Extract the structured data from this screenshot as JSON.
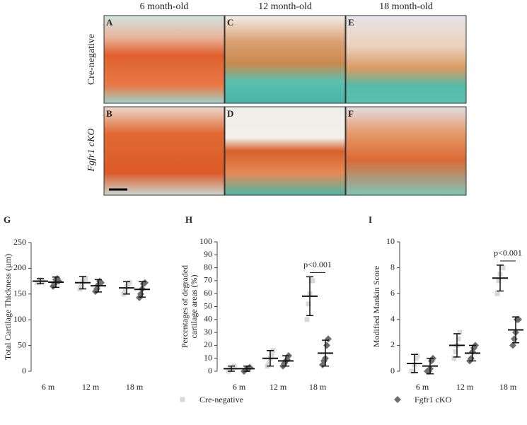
{
  "figure": {
    "columns": [
      "6 month-old",
      "12 month-old",
      "18 month-old"
    ],
    "rows": [
      "Cre-negative",
      "Fgfr1 cKO"
    ],
    "panels": [
      "A",
      "C",
      "E",
      "B",
      "D",
      "F"
    ]
  },
  "chart_data": [
    {
      "type": "dotplot",
      "panel": "G",
      "ylabel": [
        "Total Cartilage Thickness (µm)"
      ],
      "categories": [
        "6 m",
        "12 m",
        "18 m"
      ],
      "ylim": [
        0,
        250
      ],
      "yticks": [
        0,
        50,
        100,
        150,
        200,
        250
      ],
      "legend": "bottom",
      "series": [
        {
          "name": "Cre-negative",
          "color": "#d9d9d9",
          "marker": "square",
          "points": [
            [
              172,
              176,
              178,
              175,
              174
            ],
            [
              160,
              165,
              175,
              180,
              180
            ],
            [
              150,
              155,
              165,
              170,
              172
            ]
          ],
          "mean": [
            175,
            172,
            162
          ],
          "sd": [
            5,
            12,
            12
          ]
        },
        {
          "name": "Fgfr1 cKO",
          "color": "#6e6e6e",
          "marker": "diamond",
          "points": [
            [
              165,
              170,
              178,
              180,
              175
            ],
            [
              155,
              160,
              168,
              175,
              172
            ],
            [
              143,
              150,
              160,
              170,
              172
            ]
          ],
          "mean": [
            173,
            166,
            159
          ],
          "sd": [
            10,
            12,
            15
          ]
        }
      ]
    },
    {
      "type": "dotplot",
      "panel": "H",
      "ylabel": [
        "Percentages of degraded",
        "cartilage areas (%)"
      ],
      "categories": [
        "6 m",
        "12 m",
        "18 m"
      ],
      "ylim": [
        0,
        100
      ],
      "yticks": [
        0,
        10,
        20,
        30,
        40,
        50,
        60,
        70,
        80,
        90,
        100
      ],
      "annotation": "p<0.001",
      "series": [
        {
          "name": "Cre-negative",
          "color": "#d9d9d9",
          "marker": "square",
          "points": [
            [
              0,
              1,
              2,
              3,
              4
            ],
            [
              4,
              6,
              10,
              12,
              16
            ],
            [
              40,
              52,
              60,
              70,
              70
            ]
          ],
          "mean": [
            2,
            10,
            58
          ],
          "sd": [
            2,
            6,
            15
          ]
        },
        {
          "name": "Fgfr1 cKO",
          "color": "#6e6e6e",
          "marker": "diamond",
          "points": [
            [
              0,
              1,
              2,
              2,
              3
            ],
            [
              4,
              6,
              8,
              9,
              12
            ],
            [
              5,
              8,
              10,
              20,
              25
            ]
          ],
          "mean": [
            2,
            8,
            14
          ],
          "sd": [
            2,
            4,
            10
          ]
        }
      ]
    },
    {
      "type": "dotplot",
      "panel": "I",
      "ylabel": [
        "Modified Mankin Score"
      ],
      "categories": [
        "6 m",
        "12 m",
        "18 m"
      ],
      "ylim": [
        0,
        10
      ],
      "yticks": [
        0,
        2,
        4,
        6,
        8,
        10
      ],
      "annotation": "p<0.001",
      "series": [
        {
          "name": "Cre-negative",
          "color": "#d9d9d9",
          "marker": "square",
          "points": [
            [
              0,
              0,
              0.5,
              1,
              1.2
            ],
            [
              1,
              1.5,
              2,
              2.5,
              3
            ],
            [
              6,
              7,
              7.5,
              8,
              8
            ]
          ],
          "mean": [
            0.6,
            2.0,
            7.2
          ],
          "sd": [
            0.7,
            0.9,
            1.0
          ]
        },
        {
          "name": "Fgfr1 cKO",
          "color": "#6e6e6e",
          "marker": "diamond",
          "points": [
            [
              0,
              0,
              0.2,
              0.8,
              1.0
            ],
            [
              0.8,
              1,
              1.5,
              1.8,
              2
            ],
            [
              2,
              2.5,
              3,
              4,
              4
            ]
          ],
          "mean": [
            0.4,
            1.4,
            3.2
          ],
          "sd": [
            0.6,
            0.6,
            1.0
          ]
        }
      ]
    }
  ]
}
